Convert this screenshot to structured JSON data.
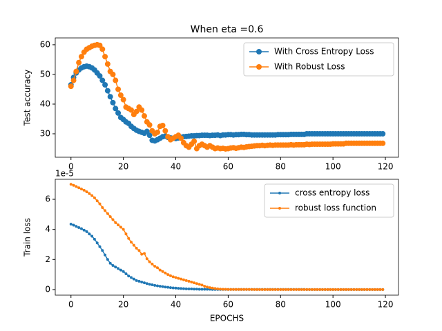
{
  "chart_data": [
    {
      "type": "line",
      "title": "When eta =0.6",
      "y_label": "Test accuracy",
      "legend": "upper right",
      "x": [
        0,
        1,
        2,
        3,
        4,
        5,
        6,
        7,
        8,
        9,
        10,
        11,
        12,
        13,
        14,
        15,
        16,
        17,
        18,
        19,
        20,
        21,
        22,
        23,
        24,
        25,
        26,
        27,
        28,
        29,
        30,
        31,
        32,
        33,
        34,
        35,
        36,
        37,
        38,
        39,
        40,
        41,
        42,
        43,
        44,
        45,
        46,
        47,
        48,
        49,
        50,
        51,
        52,
        53,
        54,
        55,
        56,
        57,
        58,
        59,
        60,
        61,
        62,
        63,
        64,
        65,
        66,
        67,
        68,
        69,
        70,
        71,
        72,
        73,
        74,
        75,
        76,
        77,
        78,
        79,
        80,
        81,
        82,
        83,
        84,
        85,
        86,
        87,
        88,
        89,
        90,
        91,
        92,
        93,
        94,
        95,
        96,
        97,
        98,
        99,
        100,
        101,
        102,
        103,
        104,
        105,
        106,
        107,
        108,
        109,
        110,
        111,
        112,
        113,
        114,
        115,
        116,
        117,
        118,
        119
      ],
      "xlim": [
        -6,
        125
      ],
      "xticks": [
        0,
        20,
        40,
        60,
        80,
        100,
        120
      ],
      "ylim": [
        22.1,
        62.3
      ],
      "yticks": [
        30,
        40,
        50,
        60
      ],
      "marker": "circle",
      "series": [
        {
          "name": "With Cross Entropy Loss",
          "color": "#1f77b4",
          "values": [
            46.5,
            49,
            50.5,
            51.5,
            52.2,
            52.6,
            52.8,
            52.6,
            52.2,
            51.5,
            50.5,
            49.5,
            48,
            46.5,
            44.5,
            42.5,
            40.5,
            38.5,
            37,
            35.5,
            34.8,
            34,
            33.5,
            32.5,
            31.8,
            31.2,
            30.8,
            30.5,
            30.2,
            30.8,
            29.5,
            27.8,
            27.6,
            28,
            28.5,
            29,
            29.2,
            28.8,
            28.6,
            28.5,
            28.4,
            28.6,
            28.8,
            29,
            29.1,
            29.2,
            29.3,
            29.3,
            29.4,
            29.4,
            29.5,
            29.5,
            29.5,
            29.4,
            29.5,
            29.5,
            29.6,
            29.4,
            29.6,
            29.6,
            29.7,
            29.7,
            29.6,
            29.7,
            29.7,
            29.8,
            29.8,
            29.7,
            29.7,
            29.6,
            29.6,
            29.6,
            29.6,
            29.6,
            29.6,
            29.6,
            29.6,
            29.6,
            29.6,
            29.7,
            29.7,
            29.7,
            29.7,
            29.7,
            29.8,
            29.8,
            29.8,
            29.8,
            29.8,
            29.8,
            30,
            30,
            30,
            30,
            30,
            30,
            30,
            30,
            30,
            30,
            30,
            30,
            30,
            30,
            30,
            30,
            30,
            30,
            30,
            30,
            30,
            30,
            30,
            30,
            30,
            30,
            30,
            30,
            30,
            30
          ]
        },
        {
          "name": "With Robust Loss",
          "color": "#ff7f0e",
          "values": [
            46,
            48,
            51,
            54,
            56,
            57.5,
            58.5,
            59,
            59.5,
            59.8,
            60,
            59.8,
            58.5,
            56,
            53.5,
            51,
            50,
            48,
            45,
            43,
            41.5,
            39,
            38.5,
            38,
            36.5,
            37.5,
            39,
            38,
            36,
            34,
            33,
            31,
            30,
            30.5,
            32.5,
            32.8,
            31,
            29,
            28,
            28.5,
            29,
            29.5,
            28.5,
            27,
            26,
            25.5,
            26.5,
            27.5,
            25,
            26,
            26.5,
            26,
            25.5,
            26,
            25.5,
            25,
            25.2,
            25,
            25.1,
            24.9,
            25,
            25.2,
            25.3,
            25.1,
            25.3,
            25.5,
            25.4,
            25.6,
            25.7,
            25.8,
            25.9,
            26,
            26,
            26.1,
            26,
            26.1,
            26.2,
            26.1,
            26.2,
            26.2,
            26.2,
            26.2,
            26.2,
            26.2,
            26.3,
            26.2,
            26.3,
            26.3,
            26.3,
            26.3,
            26.5,
            26.4,
            26.5,
            26.5,
            26.5,
            26.5,
            26.5,
            26.5,
            26.5,
            26.5,
            26.6,
            26.6,
            26.6,
            26.6,
            26.6,
            26.8,
            26.8,
            26.8,
            26.8,
            26.8,
            26.8,
            26.8,
            26.8,
            26.8,
            26.8,
            26.8,
            26.8,
            26.8,
            26.8,
            26.8
          ]
        }
      ]
    },
    {
      "type": "line",
      "x_label": "EPOCHS",
      "y_label": "Train loss",
      "offset_text": "1e-5",
      "legend": "upper right",
      "x": [
        0,
        1,
        2,
        3,
        4,
        5,
        6,
        7,
        8,
        9,
        10,
        11,
        12,
        13,
        14,
        15,
        16,
        17,
        18,
        19,
        20,
        21,
        22,
        23,
        24,
        25,
        26,
        27,
        28,
        29,
        30,
        31,
        32,
        33,
        34,
        35,
        36,
        37,
        38,
        39,
        40,
        41,
        42,
        43,
        44,
        45,
        46,
        47,
        48,
        49,
        50,
        51,
        52,
        53,
        54,
        55,
        56,
        57,
        58,
        59,
        60,
        61,
        62,
        63,
        64,
        65,
        66,
        67,
        68,
        69,
        70,
        71,
        72,
        73,
        74,
        75,
        76,
        77,
        78,
        79,
        80,
        81,
        82,
        83,
        84,
        85,
        86,
        87,
        88,
        89,
        90,
        91,
        92,
        93,
        94,
        95,
        96,
        97,
        98,
        99,
        100,
        101,
        102,
        103,
        104,
        105,
        106,
        107,
        108,
        109,
        110,
        111,
        112,
        113,
        114,
        115,
        116,
        117,
        118,
        119
      ],
      "xlim": [
        -6,
        125
      ],
      "xticks": [
        0,
        20,
        40,
        60,
        80,
        100,
        120
      ],
      "ylim": [
        -0.37,
        7.33
      ],
      "yticks": [
        0,
        2,
        4,
        6
      ],
      "marker": "dot",
      "series": [
        {
          "name": "cross entropy loss",
          "color": "#1f77b4",
          "values": [
            4.35,
            4.28,
            4.2,
            4.12,
            4.05,
            3.95,
            3.85,
            3.7,
            3.55,
            3.35,
            3.1,
            2.85,
            2.6,
            2.3,
            2.0,
            1.75,
            1.6,
            1.5,
            1.4,
            1.3,
            1.2,
            1.05,
            0.9,
            0.8,
            0.7,
            0.6,
            0.55,
            0.5,
            0.45,
            0.4,
            0.35,
            0.32,
            0.28,
            0.25,
            0.22,
            0.2,
            0.17,
            0.15,
            0.13,
            0.11,
            0.1,
            0.08,
            0.07,
            0.06,
            0.05,
            0.04,
            0.04,
            0.03,
            0.03,
            0.02,
            0.02,
            0.02,
            0.02,
            0.02,
            0.01,
            0.01,
            0.01,
            0.01,
            0.01,
            0.01,
            0.01,
            0.01,
            0.01,
            0.01,
            0.01,
            0.01,
            0.01,
            0.01,
            0.01,
            0.01,
            0.01,
            0.01,
            0.01,
            0.01,
            0.01,
            0.01,
            0.01,
            0.01,
            0.01,
            0.01,
            0.01,
            0.01,
            0.01,
            0.01,
            0.01,
            0.01,
            0.01,
            0.01,
            0.01,
            0.01,
            0,
            0,
            0,
            0,
            0,
            0,
            0,
            0,
            0,
            0,
            0,
            0,
            0,
            0,
            0,
            0,
            0,
            0,
            0,
            0,
            0,
            0,
            0,
            0,
            0,
            0,
            0,
            0,
            0,
            0
          ]
        },
        {
          "name": "robust loss function",
          "color": "#ff7f0e",
          "values": [
            7.0,
            6.93,
            6.85,
            6.77,
            6.68,
            6.6,
            6.5,
            6.38,
            6.25,
            6.1,
            5.9,
            5.7,
            5.45,
            5.25,
            5.05,
            4.85,
            4.65,
            4.45,
            4.3,
            4.15,
            4.0,
            3.7,
            3.4,
            3.15,
            2.95,
            2.75,
            2.6,
            2.35,
            2.4,
            2.05,
            1.85,
            1.7,
            1.55,
            1.45,
            1.3,
            1.2,
            1.1,
            1.0,
            0.92,
            0.85,
            0.8,
            0.75,
            0.7,
            0.65,
            0.6,
            0.55,
            0.5,
            0.45,
            0.4,
            0.35,
            0.3,
            0.22,
            0.17,
            0.13,
            0.1,
            0.07,
            0.05,
            0.03,
            0.02,
            0.02,
            0.01,
            0.01,
            0.01,
            0.01,
            0.01,
            0.01,
            0.01,
            0.01,
            0.01,
            0.01,
            0,
            0,
            0,
            0,
            0,
            0,
            0,
            0,
            0,
            0,
            0,
            0,
            0,
            0,
            0,
            0,
            0,
            0,
            0,
            0,
            0,
            0,
            0,
            0,
            0,
            0,
            0,
            0,
            0,
            0,
            0,
            0,
            0,
            0,
            0,
            0,
            0,
            0,
            0,
            0,
            0,
            0,
            0,
            0,
            0,
            0,
            0,
            0,
            0,
            0
          ]
        }
      ]
    }
  ]
}
